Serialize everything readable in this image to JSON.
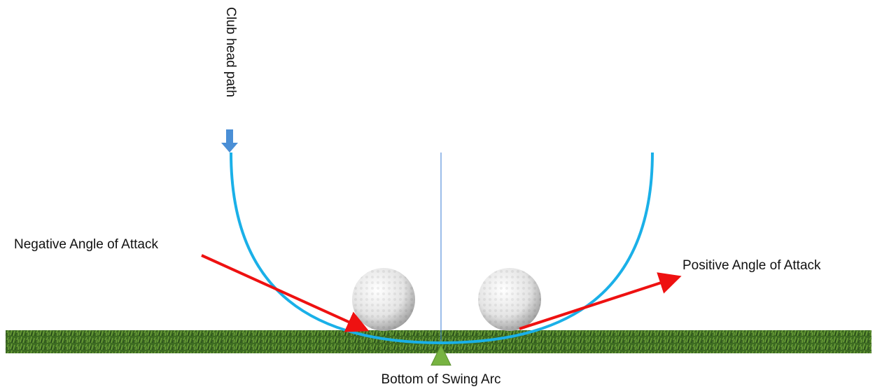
{
  "labels": {
    "club_head_path": "Club head path",
    "negative": "Negative Angle of Attack",
    "positive": "Positive Angle of Attack",
    "bottom": "Bottom of Swing Arc"
  }
}
